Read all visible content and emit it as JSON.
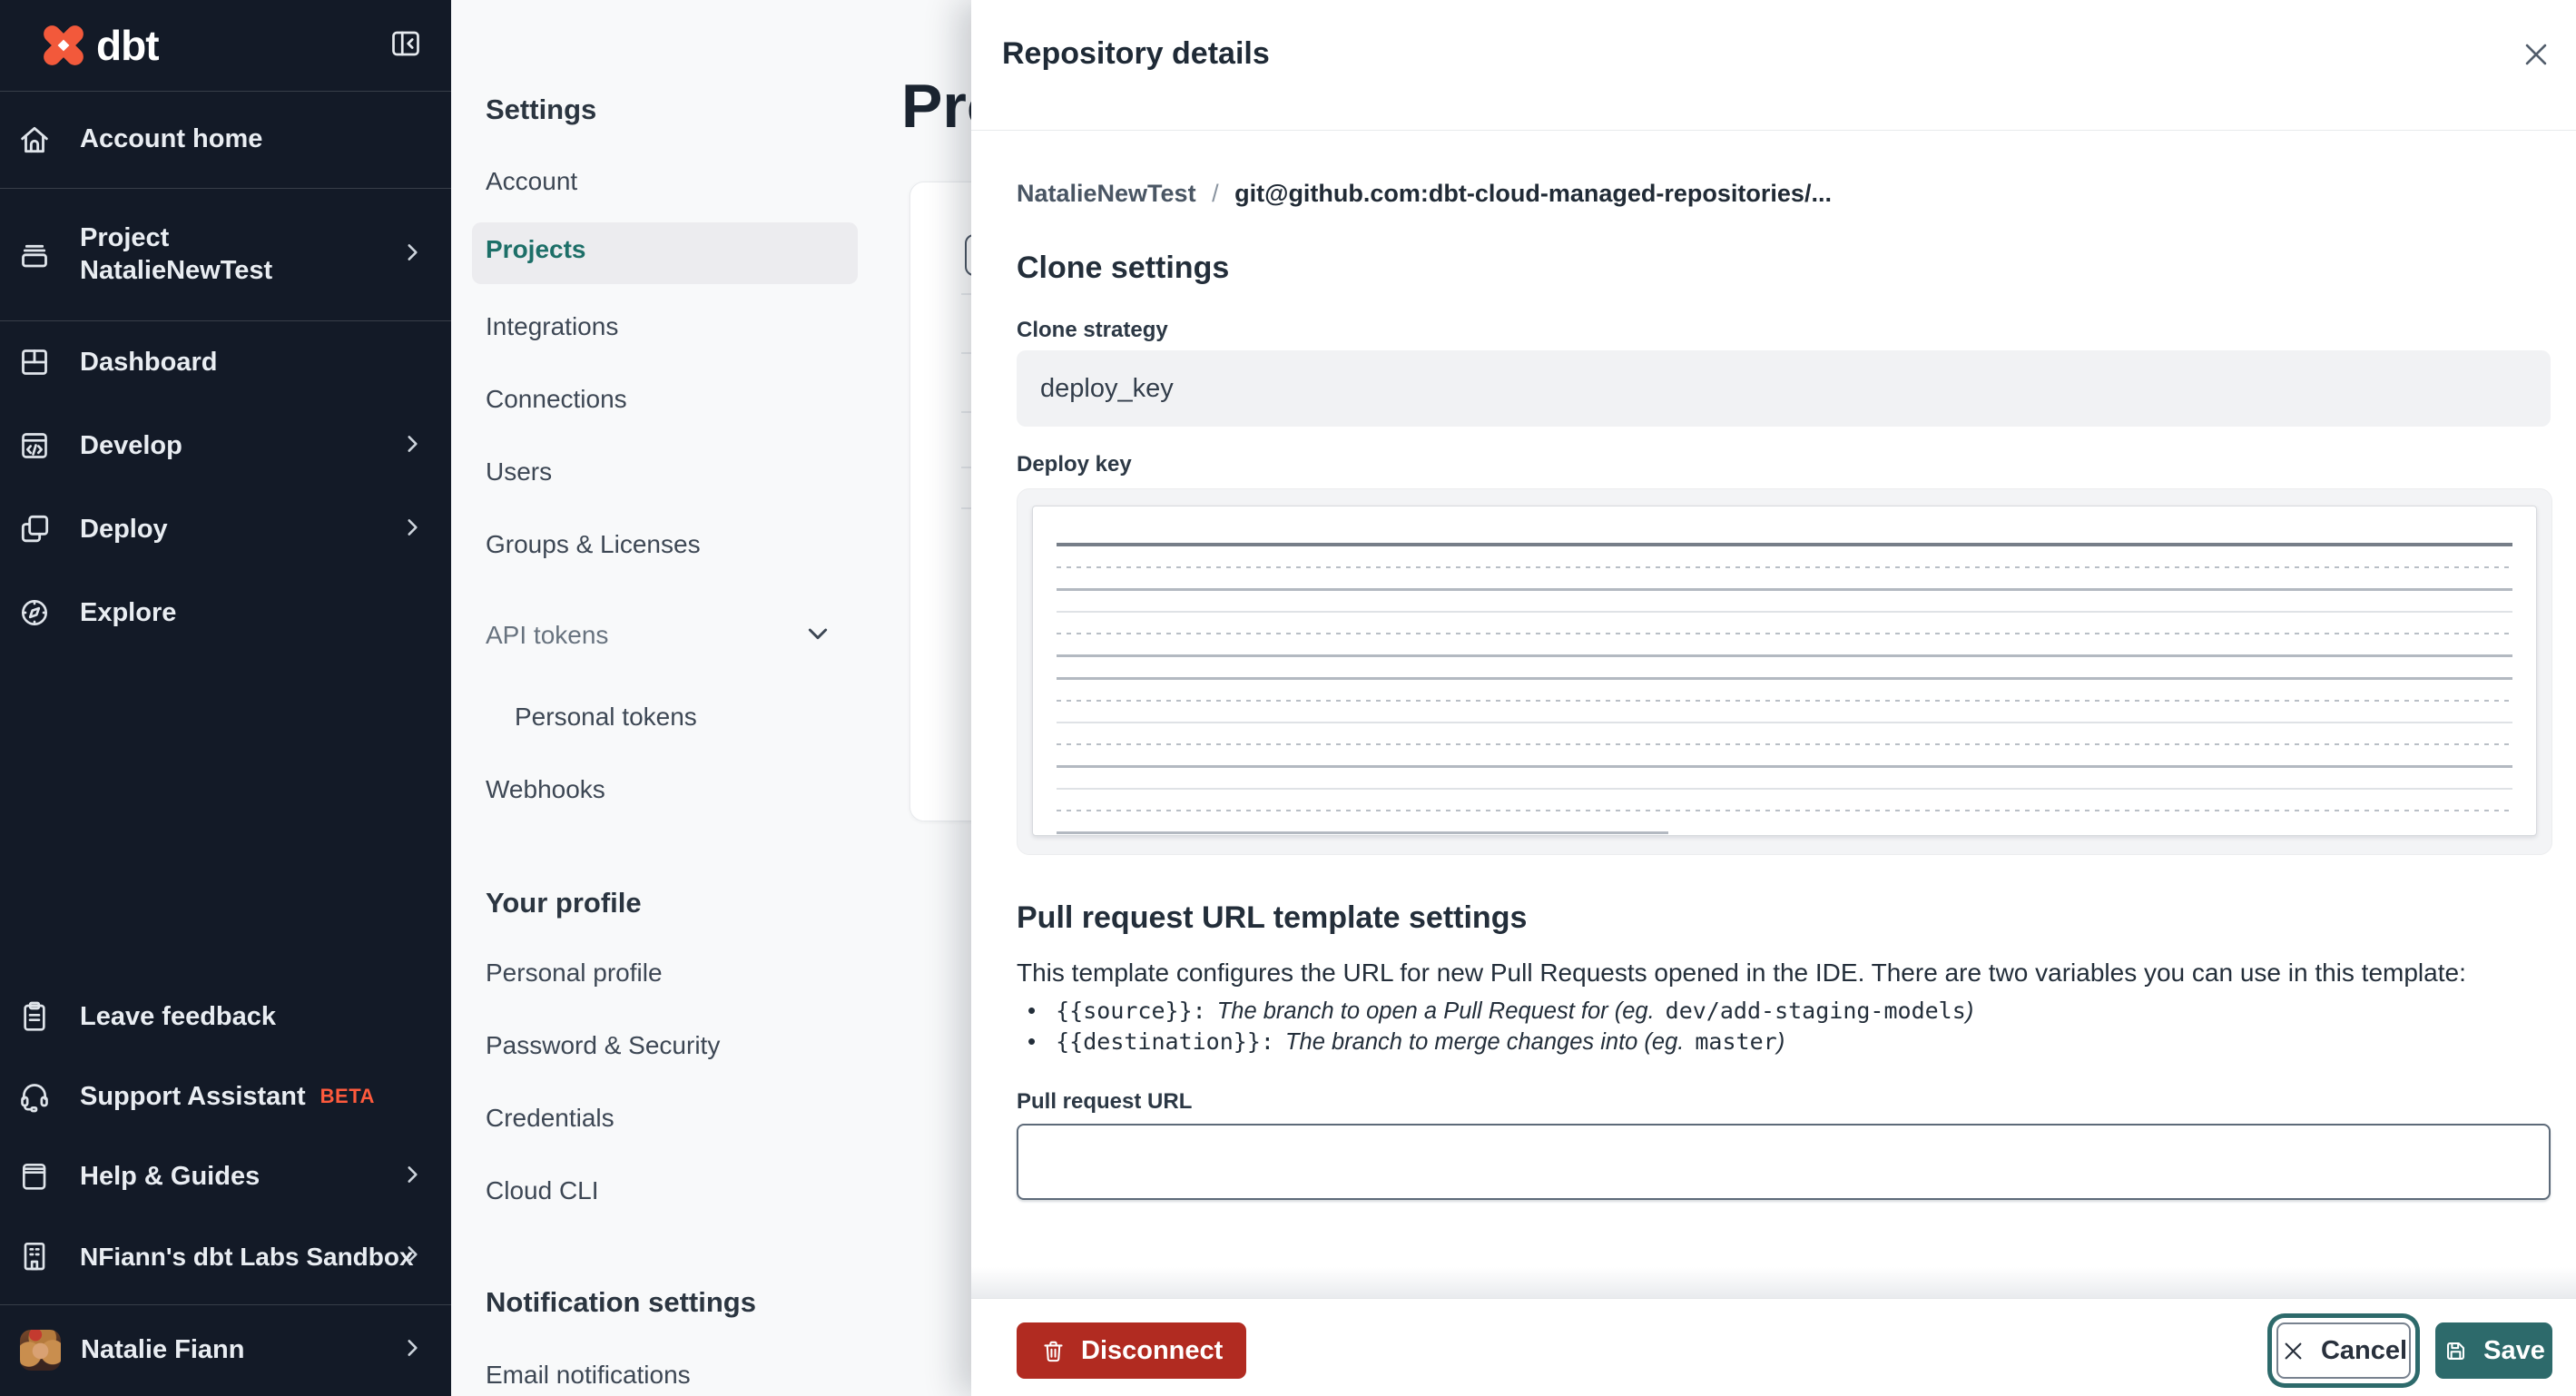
{
  "brand": {
    "logo_text": "dbt",
    "orange": "#ff5c35",
    "teal": "#2d6a6b",
    "red": "#b12b21"
  },
  "sidebar": {
    "top": [
      {
        "label": "Account home",
        "icon": "home-icon"
      },
      {
        "label": "Project NatalieNewTest",
        "icon": "project-icon",
        "chevron": true
      },
      {
        "label": "Dashboard",
        "icon": "dashboard-icon"
      },
      {
        "label": "Develop",
        "icon": "develop-icon",
        "chevron": true
      },
      {
        "label": "Deploy",
        "icon": "deploy-icon",
        "chevron": true
      },
      {
        "label": "Explore",
        "icon": "explore-icon"
      }
    ],
    "bottom": [
      {
        "label": "Leave feedback",
        "icon": "clipboard-icon"
      },
      {
        "label": "Support Assistant",
        "badge": "BETA",
        "icon": "headset-icon"
      },
      {
        "label": "Help & Guides",
        "icon": "book-icon",
        "chevron": true
      },
      {
        "label": "NFiann's dbt Labs Sandbox",
        "icon": "building-icon",
        "chevron": true
      },
      {
        "label": "Natalie Fiann",
        "icon": "avatar",
        "chevron": true
      }
    ]
  },
  "settings_nav": {
    "title": "Settings",
    "items": {
      "account": "Account",
      "projects": "Projects",
      "integrations": "Integrations",
      "connections": "Connections",
      "users": "Users",
      "groups": "Groups & Licenses",
      "api_tokens": "API tokens",
      "personal_tokens": "Personal tokens",
      "webhooks": "Webhooks"
    },
    "profile_title": "Your profile",
    "profile_items": {
      "personal_profile": "Personal profile",
      "password_security": "Password & Security",
      "credentials": "Credentials",
      "cloud_cli": "Cloud CLI"
    },
    "notification_title": "Notification settings",
    "notification_items": {
      "email": "Email notifications"
    }
  },
  "page_behind": {
    "title": "Projects"
  },
  "modal": {
    "title": "Repository details",
    "breadcrumb": {
      "project": "NatalieNewTest",
      "separator": "/",
      "repo": "git@github.com:dbt-cloud-managed-repositories/..."
    },
    "clone_settings": {
      "heading": "Clone settings",
      "clone_strategy_label": "Clone strategy",
      "clone_strategy_value": "deploy_key",
      "deploy_key_label": "Deploy key",
      "deploy_key_value_display": "redacted"
    },
    "pr_template": {
      "heading": "Pull request URL template settings",
      "description": "This template configures the URL for new Pull Requests opened in the IDE. There are two variables you can use in this template:",
      "bullets": [
        {
          "code": "{{source}}:",
          "text": "The branch to open a Pull Request for (eg.",
          "example": "dev/add-staging-models",
          "close": ")"
        },
        {
          "code": "{{destination}}:",
          "text": "The branch to merge changes into (eg.",
          "example": "master",
          "close": ")"
        }
      ],
      "url_label": "Pull request URL",
      "url_value": ""
    },
    "footer": {
      "disconnect_label": "Disconnect",
      "cancel_label": "Cancel",
      "save_label": "Save"
    }
  }
}
